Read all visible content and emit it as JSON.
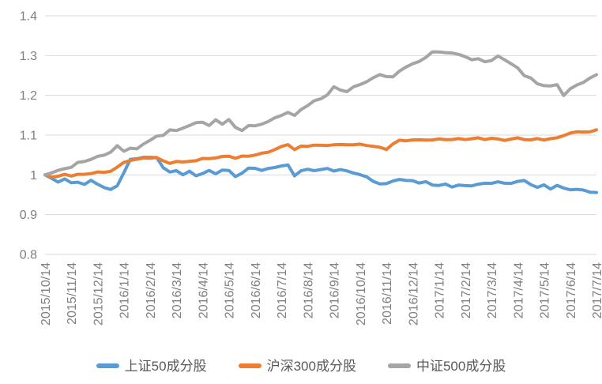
{
  "chart_data": {
    "type": "line",
    "title": "",
    "xlabel": "",
    "ylabel": "",
    "ylim": [
      0.8,
      1.4
    ],
    "y_ticks": [
      1.4,
      1.3,
      1.2,
      1.1,
      1,
      0.9,
      0.8
    ],
    "y_tick_labels": [
      "1.4",
      "1.3",
      "1.2",
      "1.1",
      "1",
      "0.9",
      "0.8"
    ],
    "grid": "horizontal",
    "legend_position": "bottom",
    "x_labels": [
      "2015/10/14",
      "2015/11/14",
      "2015/12/14",
      "2016/1/14",
      "2016/2/14",
      "2016/3/14",
      "2016/4/14",
      "2016/5/14",
      "2016/6/14",
      "2016/7/14",
      "2016/8/14",
      "2016/9/14",
      "2016/10/14",
      "2016/11/14",
      "2016/12/14",
      "2017/1/14",
      "2017/2/14",
      "2017/3/14",
      "2017/4/14",
      "2017/5/14",
      "2017/6/14",
      "2017/7/14"
    ],
    "x_step_months": 0.25,
    "series": [
      {
        "name": "上证50成分股",
        "color": "#5B9BD5",
        "values": [
          1.0,
          0.99,
          0.983,
          0.99,
          0.979,
          0.983,
          0.976,
          0.985,
          0.978,
          0.968,
          0.962,
          0.974,
          1.005,
          1.038,
          1.042,
          1.044,
          1.043,
          1.045,
          1.018,
          1.006,
          1.012,
          1.0,
          1.008,
          0.999,
          1.003,
          1.01,
          1.004,
          1.012,
          1.01,
          0.997,
          1.004,
          1.016,
          1.018,
          1.011,
          1.015,
          1.02,
          1.022,
          1.024,
          0.999,
          1.01,
          1.013,
          1.012,
          1.013,
          1.015,
          1.011,
          1.013,
          1.009,
          1.006,
          1.0,
          0.994,
          0.985,
          0.977,
          0.977,
          0.986,
          0.988,
          0.985,
          0.987,
          0.979,
          0.982,
          0.976,
          0.973,
          0.976,
          0.971,
          0.974,
          0.972,
          0.974,
          0.976,
          0.978,
          0.98,
          0.982,
          0.978,
          0.98,
          0.983,
          0.985,
          0.977,
          0.968,
          0.974,
          0.966,
          0.973,
          0.966,
          0.964,
          0.963,
          0.961,
          0.958,
          0.955
        ]
      },
      {
        "name": "沪深300成分股",
        "color": "#ED7D31",
        "values": [
          1.0,
          0.995,
          0.997,
          1.0,
          0.998,
          1.002,
          1.0,
          1.004,
          1.008,
          1.005,
          1.01,
          1.02,
          1.03,
          1.037,
          1.04,
          1.041,
          1.043,
          1.044,
          1.034,
          1.03,
          1.034,
          1.031,
          1.035,
          1.036,
          1.04,
          1.042,
          1.043,
          1.045,
          1.048,
          1.042,
          1.046,
          1.048,
          1.05,
          1.053,
          1.058,
          1.064,
          1.07,
          1.077,
          1.064,
          1.071,
          1.073,
          1.075,
          1.073,
          1.075,
          1.076,
          1.075,
          1.077,
          1.076,
          1.076,
          1.075,
          1.072,
          1.068,
          1.065,
          1.078,
          1.086,
          1.087,
          1.088,
          1.087,
          1.089,
          1.088,
          1.089,
          1.09,
          1.089,
          1.09,
          1.09,
          1.091,
          1.092,
          1.09,
          1.092,
          1.089,
          1.088,
          1.09,
          1.092,
          1.09,
          1.088,
          1.09,
          1.089,
          1.091,
          1.092,
          1.1,
          1.105,
          1.107,
          1.109,
          1.108,
          1.112
        ]
      },
      {
        "name": "中证500成分股",
        "color": "#A5A5A5",
        "values": [
          1.0,
          1.006,
          1.01,
          1.016,
          1.02,
          1.03,
          1.034,
          1.04,
          1.045,
          1.05,
          1.058,
          1.072,
          1.06,
          1.068,
          1.064,
          1.078,
          1.088,
          1.096,
          1.1,
          1.114,
          1.11,
          1.118,
          1.125,
          1.13,
          1.133,
          1.125,
          1.137,
          1.128,
          1.14,
          1.118,
          1.112,
          1.125,
          1.122,
          1.128,
          1.135,
          1.142,
          1.15,
          1.158,
          1.148,
          1.165,
          1.175,
          1.185,
          1.192,
          1.202,
          1.22,
          1.214,
          1.21,
          1.22,
          1.228,
          1.235,
          1.243,
          1.253,
          1.248,
          1.245,
          1.262,
          1.272,
          1.278,
          1.286,
          1.296,
          1.308,
          1.31,
          1.308,
          1.305,
          1.304,
          1.298,
          1.288,
          1.293,
          1.285,
          1.286,
          1.3,
          1.29,
          1.278,
          1.27,
          1.25,
          1.242,
          1.23,
          1.225,
          1.222,
          1.228,
          1.2,
          1.215,
          1.227,
          1.233,
          1.242,
          1.253
        ]
      }
    ],
    "colors": {
      "background": "#FFFFFF",
      "gridline": "#D9D9D9",
      "axis_text": "#7F7F7F",
      "legend_text": "#595959"
    }
  }
}
